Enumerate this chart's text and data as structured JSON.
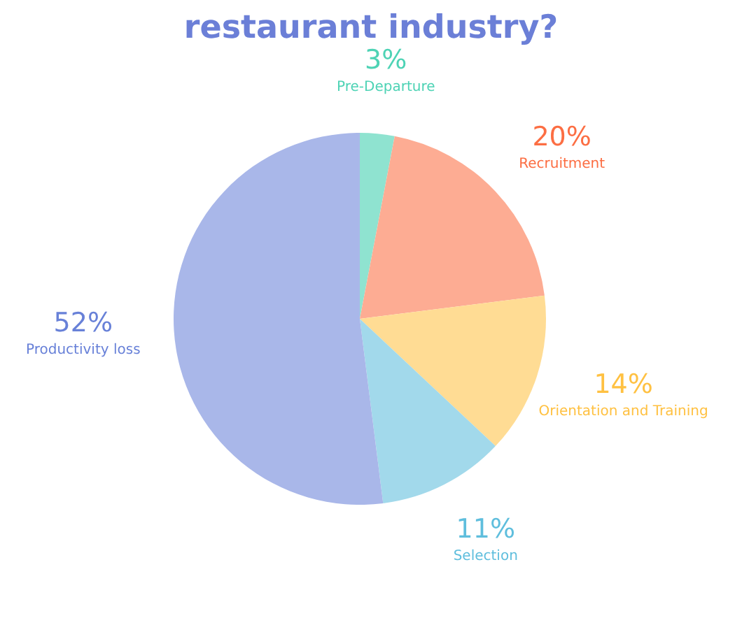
{
  "chart_data": {
    "type": "pie",
    "title": "restaurant industry?",
    "categories": [
      "Pre-Departure",
      "Recruitment",
      "Orientation and Training",
      "Selection",
      "Productivity loss"
    ],
    "values": [
      3,
      20,
      14,
      11,
      52
    ],
    "colors": [
      "#8fe3d0",
      "#fdac93",
      "#ffdc94",
      "#a2d9eb",
      "#a9b7e9"
    ],
    "value_labels": [
      "3%",
      "20%",
      "14%",
      "11%",
      "52%"
    ]
  }
}
